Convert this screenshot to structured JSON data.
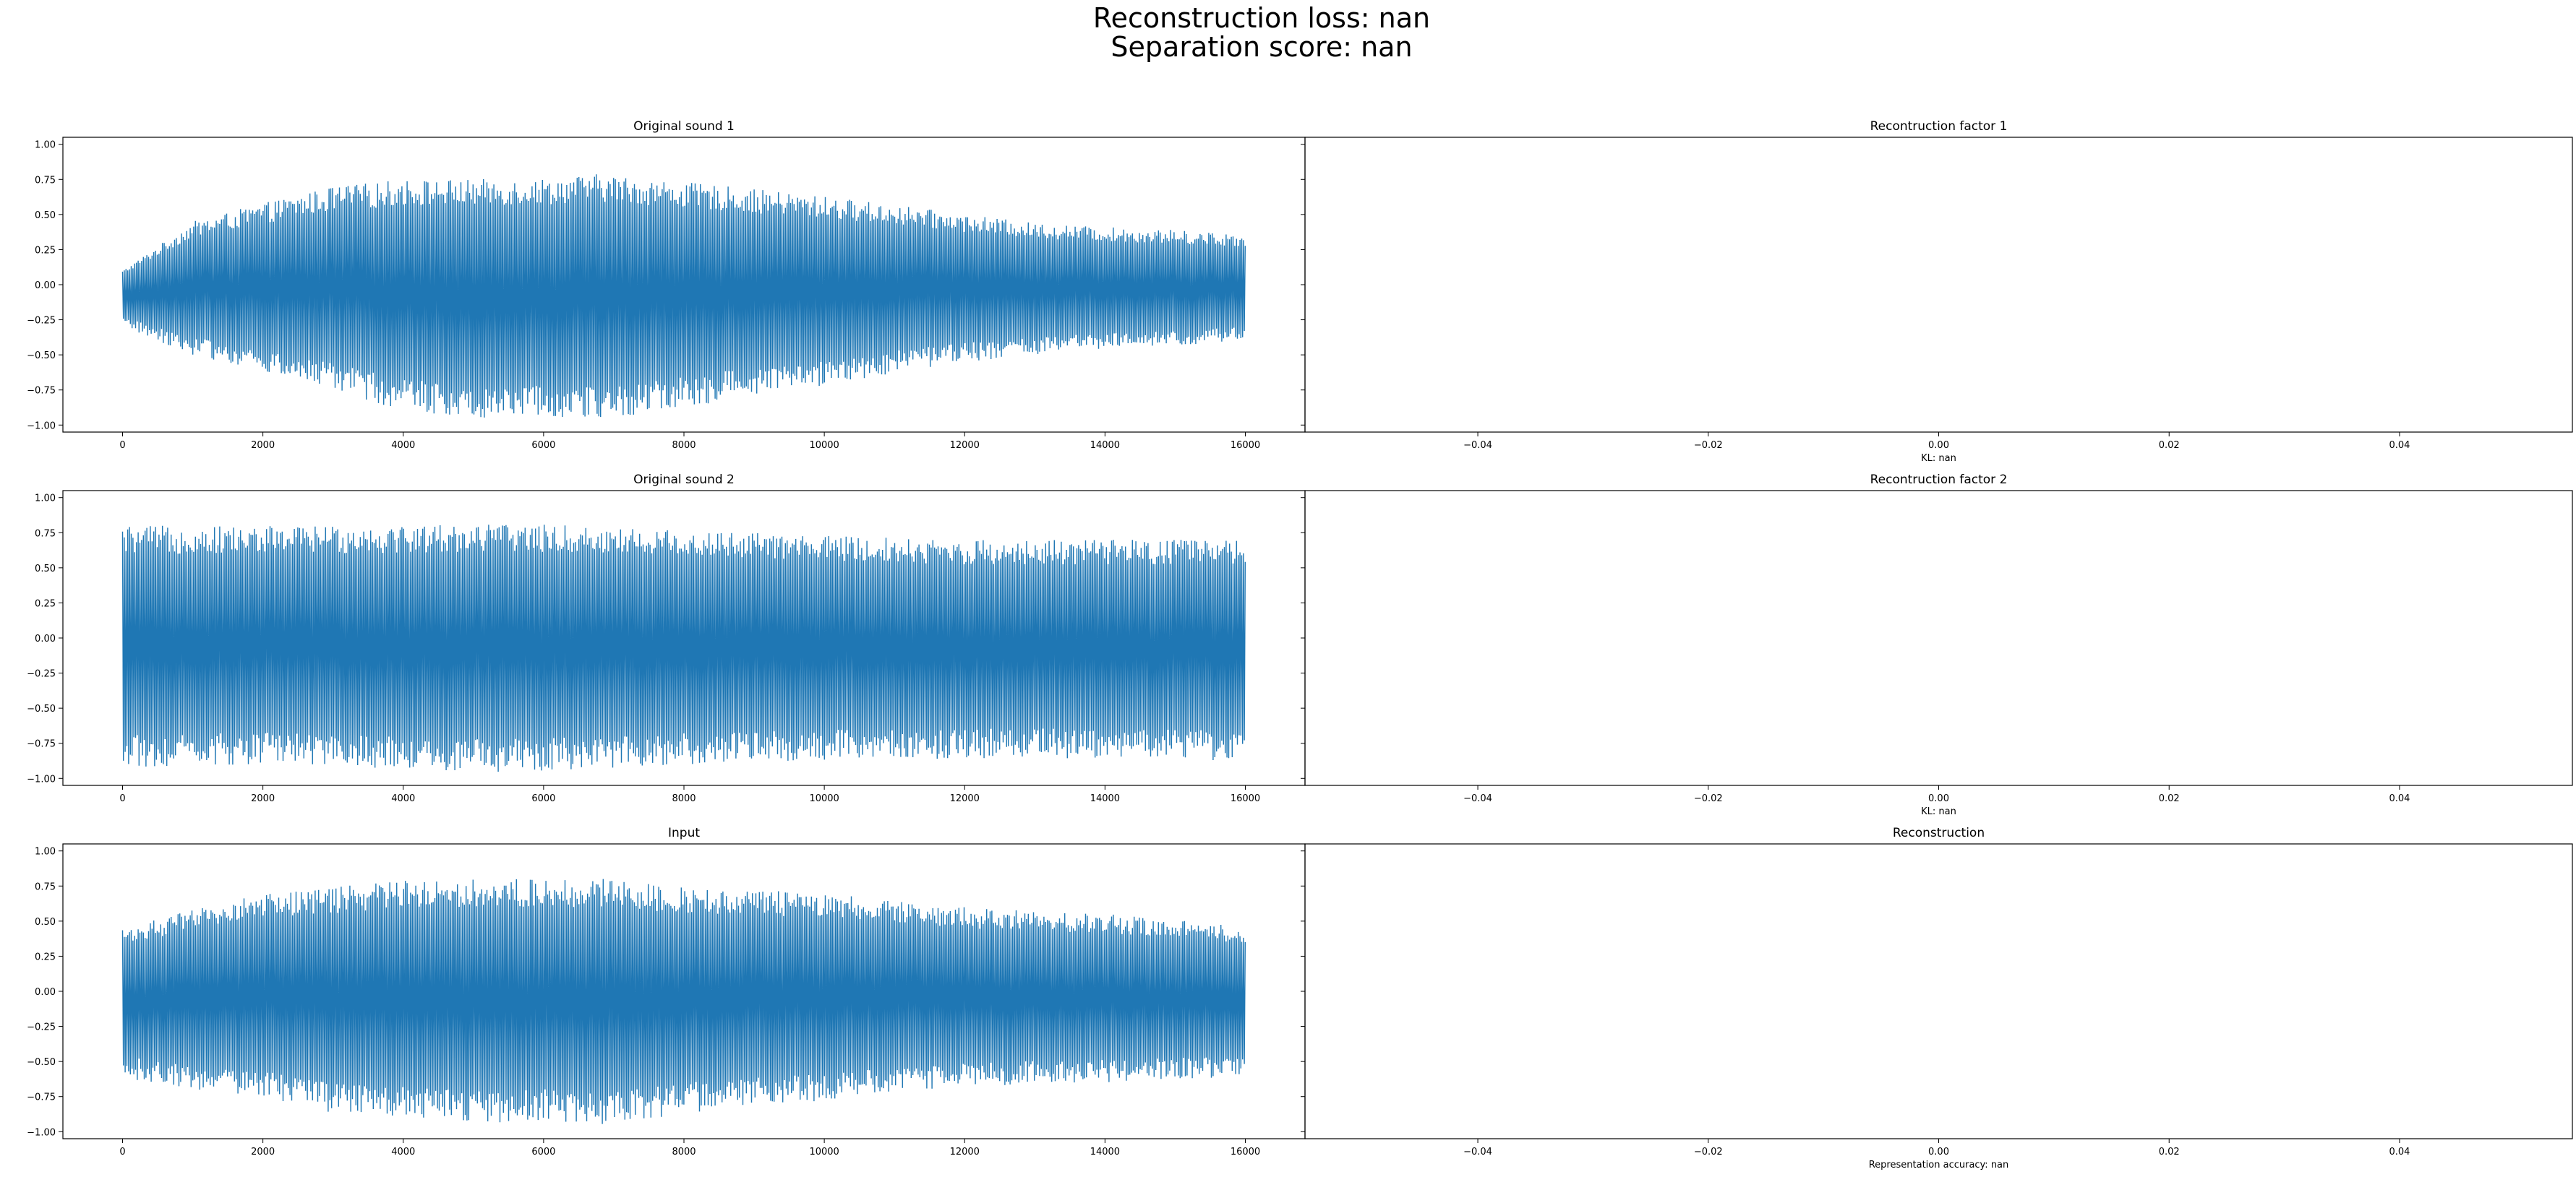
{
  "figure": {
    "title_line1": "Reconstruction loss: nan",
    "title_line2": "Separation score: nan",
    "series_color": "#1f77b4"
  },
  "chart_data": [
    {
      "id": "orig1",
      "type": "line",
      "title": "Original sound 1",
      "xlabel": "",
      "xlim": [
        -850,
        16850
      ],
      "ylim": [
        -1.05,
        1.05
      ],
      "xticks": [
        0,
        2000,
        4000,
        6000,
        8000,
        10000,
        12000,
        14000,
        16000
      ],
      "xtick_labels": [
        "0",
        "2000",
        "4000",
        "6000",
        "8000",
        "10000",
        "12000",
        "14000",
        "16000"
      ],
      "yticks": [
        -1.0,
        -0.75,
        -0.5,
        -0.25,
        0.0,
        0.25,
        0.5,
        0.75,
        1.0
      ],
      "ytick_labels": [
        "−1.00",
        "−0.75",
        "−0.50",
        "−0.25",
        "0.00",
        "0.25",
        "0.50",
        "0.75",
        "1.00"
      ],
      "x_range": [
        0,
        16000
      ],
      "envelope": [
        {
          "x": 0,
          "upper": 0.1,
          "lower": -0.3
        },
        {
          "x": 1000,
          "upper": 0.45,
          "lower": -0.5
        },
        {
          "x": 2000,
          "upper": 0.58,
          "lower": -0.62
        },
        {
          "x": 3000,
          "upper": 0.7,
          "lower": -0.75
        },
        {
          "x": 4000,
          "upper": 0.75,
          "lower": -0.9
        },
        {
          "x": 5000,
          "upper": 0.75,
          "lower": -0.95
        },
        {
          "x": 6000,
          "upper": 0.76,
          "lower": -0.93
        },
        {
          "x": 6800,
          "upper": 0.79,
          "lower": -0.97
        },
        {
          "x": 8000,
          "upper": 0.73,
          "lower": -0.88
        },
        {
          "x": 9000,
          "upper": 0.68,
          "lower": -0.78
        },
        {
          "x": 10000,
          "upper": 0.63,
          "lower": -0.72
        },
        {
          "x": 11000,
          "upper": 0.57,
          "lower": -0.63
        },
        {
          "x": 12000,
          "upper": 0.5,
          "lower": -0.55
        },
        {
          "x": 13000,
          "upper": 0.44,
          "lower": -0.5
        },
        {
          "x": 14000,
          "upper": 0.41,
          "lower": -0.46
        },
        {
          "x": 15000,
          "upper": 0.39,
          "lower": -0.44
        },
        {
          "x": 16000,
          "upper": 0.36,
          "lower": -0.4
        }
      ]
    },
    {
      "id": "recon1",
      "type": "line",
      "title": "Recontruction factor 1",
      "xlabel": "KL: nan",
      "xlim": [
        -0.055,
        0.055
      ],
      "ylim": [
        -1.05,
        1.05
      ],
      "xticks": [
        -0.04,
        -0.02,
        0.0,
        0.02,
        0.04
      ],
      "xtick_labels": [
        "−0.04",
        "−0.02",
        "0.00",
        "0.02",
        "0.04"
      ],
      "yticks": [],
      "ytick_labels": [],
      "series": []
    },
    {
      "id": "orig2",
      "type": "line",
      "title": "Original sound 2",
      "xlabel": "",
      "xlim": [
        -850,
        16850
      ],
      "ylim": [
        -1.05,
        1.05
      ],
      "xticks": [
        0,
        2000,
        4000,
        6000,
        8000,
        10000,
        12000,
        14000,
        16000
      ],
      "xtick_labels": [
        "0",
        "2000",
        "4000",
        "6000",
        "8000",
        "10000",
        "12000",
        "14000",
        "16000"
      ],
      "yticks": [
        -1.0,
        -0.75,
        -0.5,
        -0.25,
        0.0,
        0.25,
        0.5,
        0.75,
        1.0
      ],
      "ytick_labels": [
        "−1.00",
        "−0.75",
        "−0.50",
        "−0.25",
        "0.00",
        "0.25",
        "0.50",
        "0.75",
        "1.00"
      ],
      "x_range": [
        0,
        16000
      ],
      "envelope": [
        {
          "x": 0,
          "upper": 0.8,
          "lower": -0.92
        },
        {
          "x": 2000,
          "upper": 0.8,
          "lower": -0.9
        },
        {
          "x": 4000,
          "upper": 0.81,
          "lower": -0.93
        },
        {
          "x": 5500,
          "upper": 0.82,
          "lower": -0.96
        },
        {
          "x": 7000,
          "upper": 0.79,
          "lower": -0.93
        },
        {
          "x": 8000,
          "upper": 0.77,
          "lower": -0.9
        },
        {
          "x": 10000,
          "upper": 0.73,
          "lower": -0.87
        },
        {
          "x": 12000,
          "upper": 0.7,
          "lower": -0.86
        },
        {
          "x": 14000,
          "upper": 0.7,
          "lower": -0.86
        },
        {
          "x": 16000,
          "upper": 0.7,
          "lower": -0.88
        }
      ]
    },
    {
      "id": "recon2",
      "type": "line",
      "title": "Recontruction factor 2",
      "xlabel": "KL: nan",
      "xlim": [
        -0.055,
        0.055
      ],
      "ylim": [
        -1.05,
        1.05
      ],
      "xticks": [
        -0.04,
        -0.02,
        0.0,
        0.02,
        0.04
      ],
      "xtick_labels": [
        "−0.04",
        "−0.02",
        "0.00",
        "0.02",
        "0.04"
      ],
      "yticks": [],
      "ytick_labels": [],
      "series": []
    },
    {
      "id": "input",
      "type": "line",
      "title": "Input",
      "xlabel": "",
      "xlim": [
        -850,
        16850
      ],
      "ylim": [
        -1.05,
        1.05
      ],
      "xticks": [
        0,
        2000,
        4000,
        6000,
        8000,
        10000,
        12000,
        14000,
        16000
      ],
      "xtick_labels": [
        "0",
        "2000",
        "4000",
        "6000",
        "8000",
        "10000",
        "12000",
        "14000",
        "16000"
      ],
      "yticks": [
        -1.0,
        -0.75,
        -0.5,
        -0.25,
        0.0,
        0.25,
        0.5,
        0.75,
        1.0
      ],
      "ytick_labels": [
        "−1.00",
        "−0.75",
        "−0.50",
        "−0.25",
        "0.00",
        "0.25",
        "0.50",
        "0.75",
        "1.00"
      ],
      "x_range": [
        0,
        16000
      ],
      "envelope": [
        {
          "x": 0,
          "upper": 0.45,
          "lower": -0.62
        },
        {
          "x": 1000,
          "upper": 0.58,
          "lower": -0.7
        },
        {
          "x": 2000,
          "upper": 0.7,
          "lower": -0.75
        },
        {
          "x": 3000,
          "upper": 0.74,
          "lower": -0.88
        },
        {
          "x": 4000,
          "upper": 0.8,
          "lower": -0.9
        },
        {
          "x": 5000,
          "upper": 0.8,
          "lower": -0.94
        },
        {
          "x": 6000,
          "upper": 0.8,
          "lower": -0.93
        },
        {
          "x": 7000,
          "upper": 0.8,
          "lower": -0.95
        },
        {
          "x": 8000,
          "upper": 0.74,
          "lower": -0.87
        },
        {
          "x": 9000,
          "upper": 0.72,
          "lower": -0.82
        },
        {
          "x": 10000,
          "upper": 0.7,
          "lower": -0.78
        },
        {
          "x": 11000,
          "upper": 0.64,
          "lower": -0.72
        },
        {
          "x": 12000,
          "upper": 0.6,
          "lower": -0.68
        },
        {
          "x": 13000,
          "upper": 0.57,
          "lower": -0.66
        },
        {
          "x": 14000,
          "upper": 0.55,
          "lower": -0.65
        },
        {
          "x": 15000,
          "upper": 0.52,
          "lower": -0.62
        },
        {
          "x": 16000,
          "upper": 0.45,
          "lower": -0.62
        }
      ]
    },
    {
      "id": "recon",
      "type": "line",
      "title": "Reconstruction",
      "xlabel": "Representation accuracy: nan",
      "xlim": [
        -0.055,
        0.055
      ],
      "ylim": [
        -1.05,
        1.05
      ],
      "xticks": [
        -0.04,
        -0.02,
        0.0,
        0.02,
        0.04
      ],
      "xtick_labels": [
        "−0.04",
        "−0.02",
        "0.00",
        "0.02",
        "0.04"
      ],
      "yticks": [],
      "ytick_labels": [],
      "series": []
    }
  ]
}
